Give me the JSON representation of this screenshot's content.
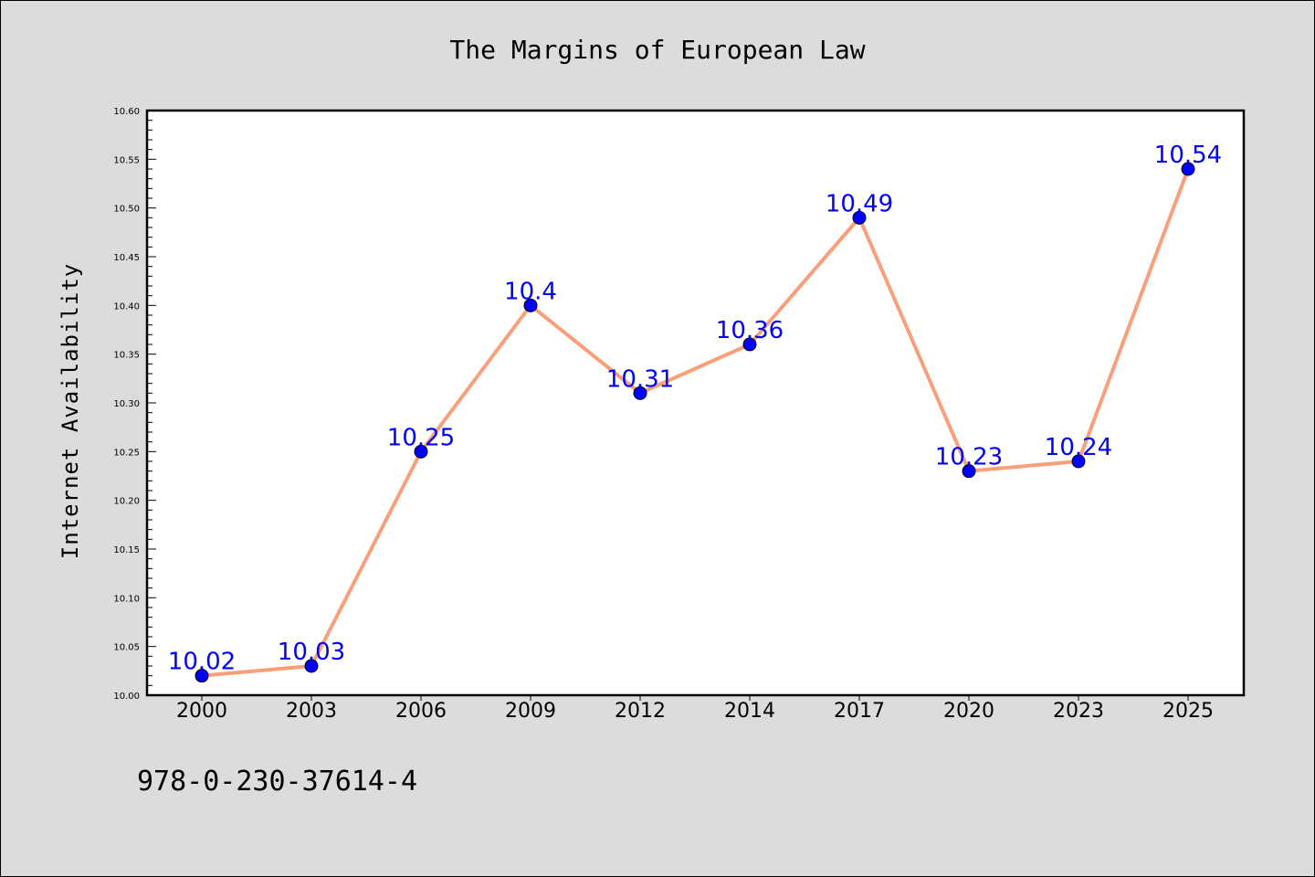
{
  "footer_text": "978-0-230-37614-4",
  "chart_data": {
    "type": "line",
    "title": "The Margins of European Law",
    "xlabel": "",
    "ylabel": "Internet Availability",
    "categories": [
      "2000",
      "2003",
      "2006",
      "2009",
      "2012",
      "2014",
      "2017",
      "2020",
      "2023",
      "2025"
    ],
    "series": [
      {
        "values": [
          10.02,
          10.03,
          10.25,
          10.4,
          10.31,
          10.36,
          10.49,
          10.23,
          10.24,
          10.54
        ],
        "data_labels": [
          "10.02",
          "10.03",
          "10.25",
          "10.4",
          "10.31",
          "10.36",
          "10.49",
          "10.23",
          "10.24",
          "10.54"
        ],
        "line_color": "#fa9f7a",
        "marker_color": "#0000ff"
      }
    ],
    "ylim": [
      10.0,
      10.6
    ],
    "y_ticks": [
      "10.00",
      "10.05",
      "10.10",
      "10.15",
      "10.20",
      "10.25",
      "10.30",
      "10.35",
      "10.40",
      "10.45",
      "10.50",
      "10.55",
      "10.60"
    ],
    "grid": false,
    "legend": "none",
    "background_color": "#dcdcdc",
    "plot_background_color": "#ffffff"
  }
}
